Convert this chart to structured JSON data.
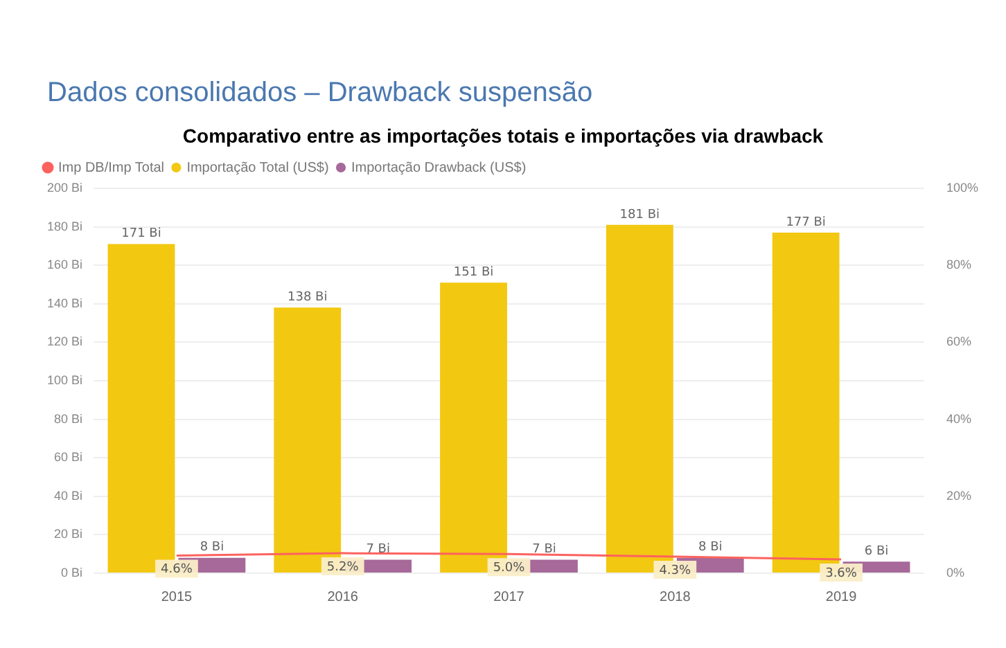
{
  "chart_data": {
    "type": "bar",
    "title": "Dados consolidados – Drawback suspensão",
    "subtitle": "Comparativo entre as importações totais e importações via drawback",
    "categories": [
      "2015",
      "2016",
      "2017",
      "2018",
      "2019"
    ],
    "series": [
      {
        "name": "Importação Total (US$)",
        "color": "#f2c811",
        "values": [
          171,
          138,
          151,
          181,
          177
        ],
        "value_labels": [
          "171 Bi",
          "138 Bi",
          "151 Bi",
          "181 Bi",
          "177 Bi"
        ]
      },
      {
        "name": "Importação Drawback (US$)",
        "color": "#a66999",
        "values": [
          8,
          7,
          7,
          8,
          6
        ],
        "value_labels": [
          "8 Bi",
          "7 Bi",
          "7 Bi",
          "8 Bi",
          "6 Bi"
        ]
      },
      {
        "name": "Imp DB/Imp Total",
        "type": "line",
        "axis": "y2",
        "color": "#fd625e",
        "values": [
          4.6,
          5.2,
          5.0,
          4.3,
          3.6
        ],
        "value_labels": [
          "4.6%",
          "5.2%",
          "5.0%",
          "4.3%",
          "3.6%"
        ]
      }
    ],
    "ylim": [
      0,
      200
    ],
    "yticks": [
      {
        "value": 0,
        "label": "0 Bi"
      },
      {
        "value": 20,
        "label": "20 Bi"
      },
      {
        "value": 40,
        "label": "40 Bi"
      },
      {
        "value": 60,
        "label": "60 Bi"
      },
      {
        "value": 80,
        "label": "80 Bi"
      },
      {
        "value": 100,
        "label": "100 Bi"
      },
      {
        "value": 120,
        "label": "120 Bi"
      },
      {
        "value": 140,
        "label": "140 Bi"
      },
      {
        "value": 160,
        "label": "160 Bi"
      },
      {
        "value": 180,
        "label": "180 Bi"
      },
      {
        "value": 200,
        "label": "200 Bi"
      }
    ],
    "y2lim": [
      0,
      100
    ],
    "y2ticks": [
      {
        "value": 0,
        "label": "0%"
      },
      {
        "value": 20,
        "label": "20%"
      },
      {
        "value": 40,
        "label": "40%"
      },
      {
        "value": 60,
        "label": "60%"
      },
      {
        "value": 80,
        "label": "80%"
      },
      {
        "value": 100,
        "label": "100%"
      }
    ],
    "grid": "y",
    "legend": "top left",
    "marker": "none",
    "line_style": "solid"
  }
}
